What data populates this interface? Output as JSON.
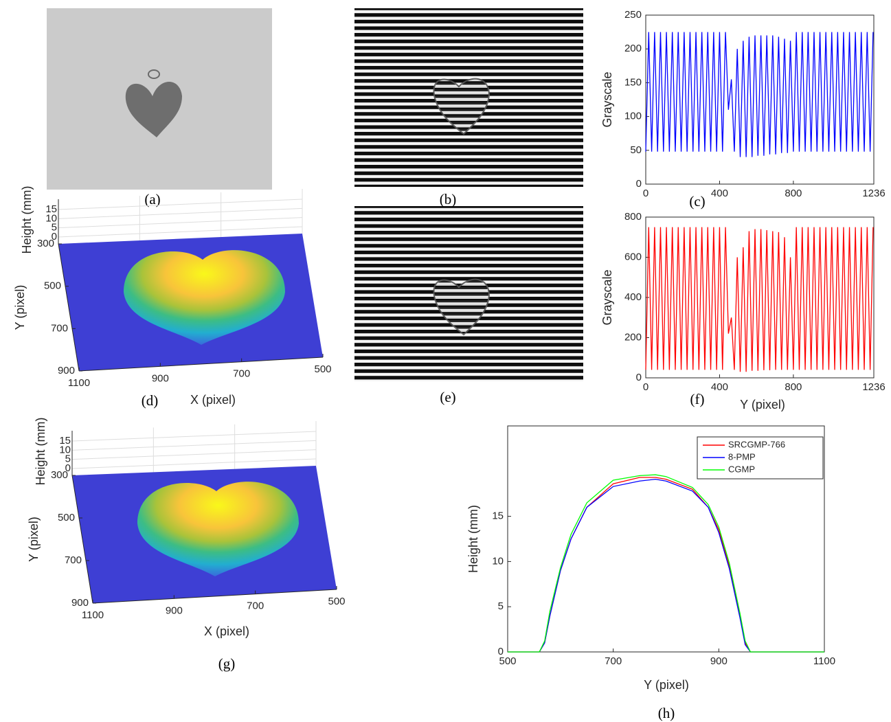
{
  "images": [
    {
      "caption": "(a)"
    },
    {
      "caption": "(b)"
    },
    {
      "caption": "(e)"
    }
  ],
  "chart_data": [
    {
      "type": "line",
      "caption": "(c)",
      "ylabel": "Grayscale",
      "color": "#0000ff",
      "xlim": [
        0,
        1236
      ],
      "xticks": [
        0,
        400,
        800,
        1236
      ],
      "ylim": [
        0,
        250
      ],
      "yticks": [
        0,
        50,
        100,
        150,
        200,
        250
      ],
      "x": [
        0,
        16,
        32,
        48,
        64,
        80,
        96,
        112,
        128,
        144,
        160,
        176,
        192,
        208,
        224,
        240,
        256,
        272,
        288,
        304,
        320,
        336,
        352,
        368,
        384,
        400,
        416,
        432,
        448,
        464,
        480,
        496,
        512,
        528,
        544,
        560,
        576,
        592,
        608,
        624,
        640,
        656,
        672,
        688,
        704,
        720,
        736,
        752,
        768,
        784,
        800,
        816,
        832,
        848,
        864,
        880,
        896,
        912,
        928,
        944,
        960,
        976,
        992,
        1008,
        1024,
        1040,
        1056,
        1072,
        1088,
        1104,
        1120,
        1136,
        1152,
        1168,
        1184,
        1200,
        1216,
        1232
      ],
      "values": [
        48,
        225,
        48,
        225,
        48,
        225,
        48,
        225,
        48,
        225,
        48,
        225,
        48,
        225,
        48,
        225,
        48,
        225,
        48,
        225,
        48,
        225,
        48,
        225,
        48,
        225,
        48,
        225,
        110,
        155,
        48,
        200,
        40,
        212,
        40,
        218,
        40,
        220,
        42,
        220,
        42,
        220,
        44,
        220,
        44,
        218,
        46,
        215,
        46,
        212,
        48,
        225,
        48,
        225,
        48,
        225,
        48,
        225,
        48,
        225,
        48,
        225,
        48,
        225,
        48,
        225,
        48,
        225,
        48,
        225,
        48,
        225,
        48,
        225,
        48,
        225,
        48,
        225
      ]
    },
    {
      "type": "line",
      "caption": "(f)",
      "ylabel": "Grayscale",
      "xlabel": "Y (pixel)",
      "color": "#ff0000",
      "xlim": [
        0,
        1236
      ],
      "xticks": [
        0,
        400,
        800,
        1236
      ],
      "ylim": [
        0,
        800
      ],
      "yticks": [
        0,
        200,
        400,
        600,
        800
      ],
      "x": [
        0,
        16,
        32,
        48,
        64,
        80,
        96,
        112,
        128,
        144,
        160,
        176,
        192,
        208,
        224,
        240,
        256,
        272,
        288,
        304,
        320,
        336,
        352,
        368,
        384,
        400,
        416,
        432,
        448,
        464,
        480,
        496,
        512,
        528,
        544,
        560,
        576,
        592,
        608,
        624,
        640,
        656,
        672,
        688,
        704,
        720,
        736,
        752,
        768,
        784,
        800,
        816,
        832,
        848,
        864,
        880,
        896,
        912,
        928,
        944,
        960,
        976,
        992,
        1008,
        1024,
        1040,
        1056,
        1072,
        1088,
        1104,
        1120,
        1136,
        1152,
        1168,
        1184,
        1200,
        1216,
        1232
      ],
      "values": [
        40,
        750,
        40,
        750,
        40,
        750,
        40,
        750,
        40,
        750,
        40,
        750,
        40,
        750,
        40,
        750,
        40,
        750,
        40,
        750,
        40,
        750,
        40,
        750,
        40,
        750,
        40,
        750,
        220,
        300,
        40,
        600,
        30,
        650,
        30,
        730,
        35,
        740,
        35,
        740,
        38,
        735,
        38,
        730,
        40,
        725,
        40,
        700,
        40,
        600,
        40,
        750,
        40,
        750,
        40,
        750,
        40,
        750,
        40,
        750,
        40,
        750,
        40,
        750,
        40,
        750,
        40,
        750,
        40,
        750,
        40,
        750,
        40,
        750,
        40,
        750,
        40,
        750
      ]
    },
    {
      "type": "line",
      "caption": "(h)",
      "ylabel": "Height (mm)",
      "xlabel": "Y (pixel)",
      "xlim": [
        500,
        1100
      ],
      "xticks": [
        500,
        700,
        900,
        1100
      ],
      "ylim": [
        0,
        25
      ],
      "yticks": [
        0,
        5,
        10,
        15
      ],
      "x": [
        500,
        560,
        570,
        580,
        600,
        620,
        650,
        700,
        750,
        780,
        800,
        850,
        880,
        900,
        920,
        940,
        950,
        960,
        1100
      ],
      "series": [
        {
          "name": "SRCGMP-766",
          "color": "#ff0000",
          "values": [
            0,
            0,
            1,
            4,
            9,
            12.5,
            16,
            18.6,
            19.3,
            19.3,
            19.1,
            18,
            16,
            13.5,
            9.5,
            4,
            1,
            0,
            0
          ]
        },
        {
          "name": "8-PMP",
          "color": "#0000ff",
          "values": [
            0,
            0,
            1,
            4,
            9,
            12.5,
            16,
            18.3,
            18.9,
            19.1,
            18.9,
            17.8,
            16,
            13.2,
            9.2,
            3.8,
            0.8,
            0,
            0
          ]
        },
        {
          "name": "CGMP",
          "color": "#00ff00",
          "values": [
            0,
            0,
            1.2,
            4.5,
            9.3,
            13,
            16.5,
            19,
            19.5,
            19.6,
            19.4,
            18.2,
            16.3,
            13.8,
            9.8,
            4.3,
            1.2,
            0,
            0
          ]
        }
      ]
    },
    {
      "type": "surface",
      "caption": "(d)",
      "xlabel": "X (pixel)",
      "ylabel": "Y (pixel)",
      "zlabel": "Height (mm)",
      "xlim": [
        1100,
        500
      ],
      "xticks": [
        1100,
        900,
        700,
        500
      ],
      "ylim": [
        300,
        900
      ],
      "yticks": [
        300,
        500,
        700,
        900
      ],
      "zlim": [
        0,
        15
      ],
      "zticks": [
        0,
        5,
        10,
        15
      ]
    },
    {
      "type": "surface",
      "caption": "(g)",
      "xlabel": "X (pixel)",
      "ylabel": "Y (pixel)",
      "zlabel": "Height (mm)",
      "xlim": [
        1100,
        500
      ],
      "xticks": [
        1100,
        900,
        700,
        500
      ],
      "ylim": [
        300,
        900
      ],
      "yticks": [
        300,
        500,
        700,
        900
      ],
      "zlim": [
        0,
        15
      ],
      "zticks": [
        0,
        5,
        10,
        15
      ]
    }
  ]
}
